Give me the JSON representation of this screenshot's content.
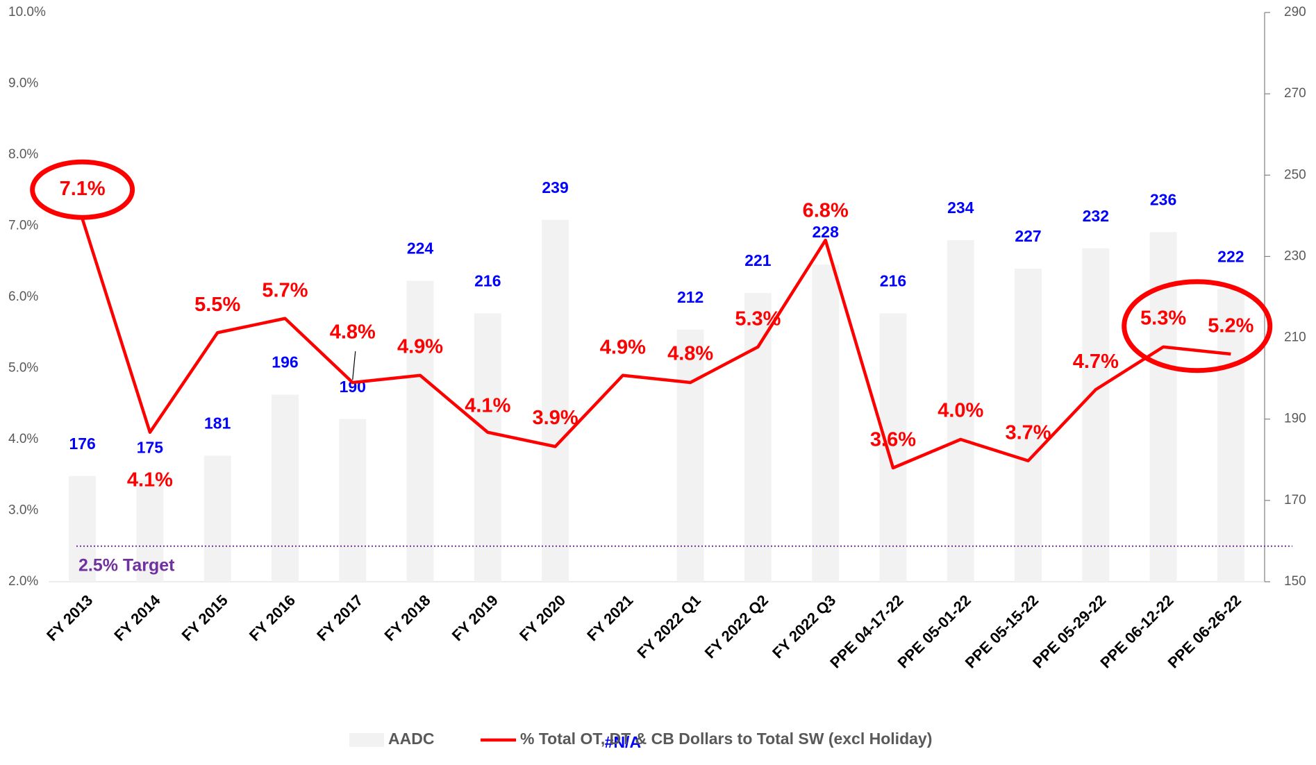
{
  "chart_data": {
    "type": "bar+line",
    "categories": [
      "FY 2013",
      "FY 2014",
      "FY 2015",
      "FY 2016",
      "FY 2017",
      "FY 2018",
      "FY 2019",
      "FY 2020",
      "FY 2021",
      "FY 2022 Q1",
      "FY 2022 Q2",
      "FY 2022 Q3",
      "PPE 04-17-22",
      "PPE 05-01-22",
      "PPE 05-15-22",
      "PPE 05-29-22",
      "PPE 06-12-22",
      "PPE 06-26-22"
    ],
    "series": [
      {
        "name": "AADC",
        "type": "bar",
        "axis": "y2",
        "color": "#f2f2f2",
        "label_color": "#0000ff",
        "values": [
          176,
          175,
          181,
          196,
          190,
          224,
          216,
          239,
          null,
          212,
          221,
          228,
          216,
          234,
          227,
          232,
          236,
          222
        ],
        "value_labels": [
          "176",
          "175",
          "181",
          "196",
          "190",
          "224",
          "216",
          "239",
          "#N/A",
          "212",
          "221",
          "228",
          "216",
          "234",
          "227",
          "232",
          "236",
          "222"
        ]
      },
      {
        "name": "% Total OT, DT & CB Dollars to Total SW (excl Holiday)",
        "type": "line",
        "axis": "y",
        "color": "#ff0000",
        "label_color": "#ff0000",
        "values": [
          7.1,
          4.1,
          5.5,
          5.7,
          4.8,
          4.9,
          4.1,
          3.9,
          4.9,
          4.8,
          5.3,
          6.8,
          3.6,
          4.0,
          3.7,
          4.7,
          5.3,
          5.2
        ],
        "value_labels": [
          "7.1%",
          "4.1%",
          "5.5%",
          "5.7%",
          "4.8%",
          "4.9%",
          "4.1%",
          "3.9%",
          "4.9%",
          "4.8%",
          "5.3%",
          "6.8%",
          "3.6%",
          "4.0%",
          "3.7%",
          "4.7%",
          "5.3%",
          "5.2%"
        ]
      }
    ],
    "ylim": [
      2,
      10
    ],
    "yticks": [
      {
        "value": 2,
        "label": "2.0%"
      },
      {
        "value": 3,
        "label": "3.0%"
      },
      {
        "value": 4,
        "label": "4.0%"
      },
      {
        "value": 5,
        "label": "5.0%"
      },
      {
        "value": 6,
        "label": "6.0%"
      },
      {
        "value": 7,
        "label": "7.0%"
      },
      {
        "value": 8,
        "label": "8.0%"
      },
      {
        "value": 9,
        "label": "9.0%"
      },
      {
        "value": 10,
        "label": "10.0%"
      }
    ],
    "y2lim": [
      150,
      290
    ],
    "y2ticks": [
      150,
      170,
      190,
      210,
      230,
      250,
      270,
      290
    ],
    "annotations": [
      {
        "text": "2.5% Target",
        "y": 2.5,
        "color": "#7030a0"
      }
    ],
    "legend": "bottom"
  }
}
